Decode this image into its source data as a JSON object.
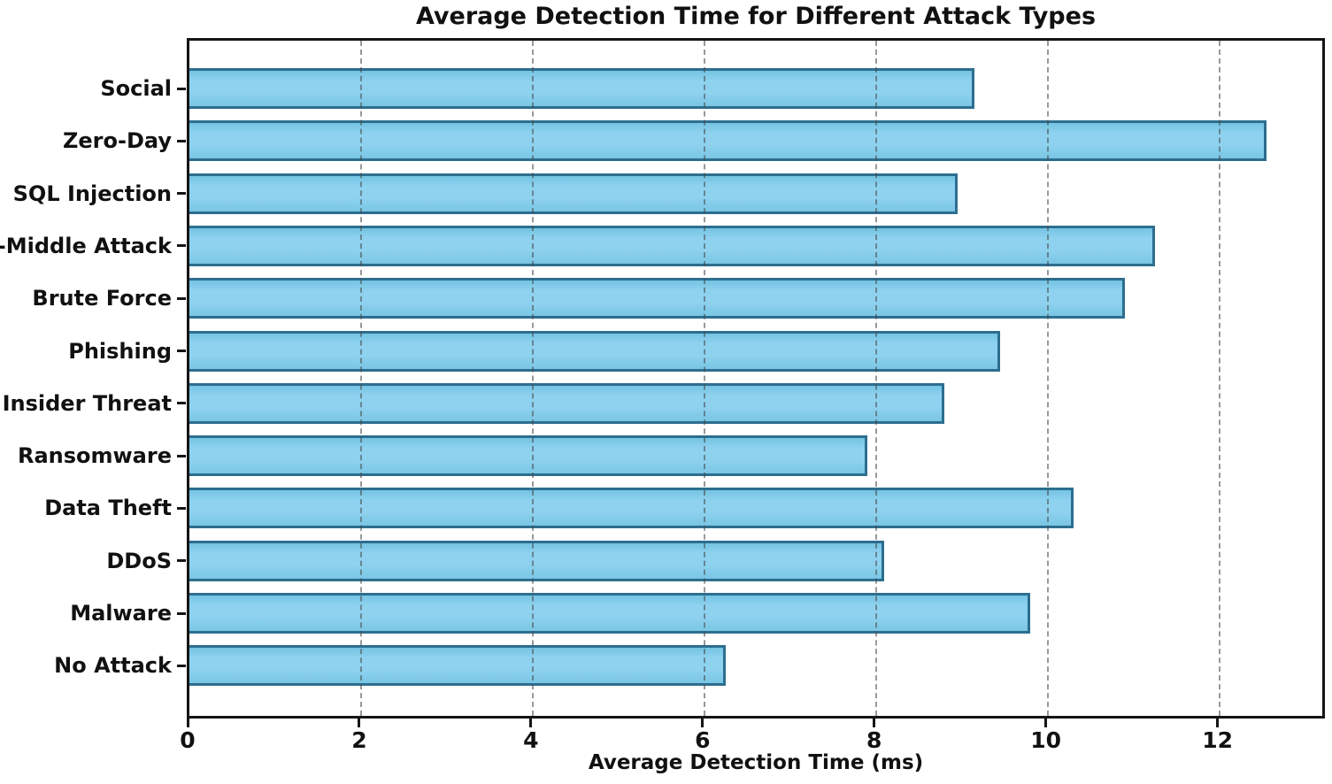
{
  "chart_data": {
    "type": "bar",
    "orientation": "horizontal",
    "title": "Average Detection Time for Different Attack Types",
    "xlabel": "Average Detection Time (ms)",
    "ylabel": "",
    "categories": [
      "Social",
      "Zero-Day",
      "SQL Injection",
      "-In-Middle Attack",
      "Brute Force",
      "Phishing",
      "Insider Threat",
      "Ransomware",
      "Data Theft",
      "DDoS",
      "Malware",
      "No Attack"
    ],
    "values": [
      9.15,
      12.55,
      8.95,
      11.25,
      10.9,
      9.45,
      8.8,
      7.9,
      10.3,
      8.1,
      9.8,
      6.25
    ],
    "xticks": [
      0,
      2,
      4,
      6,
      8,
      10,
      12
    ],
    "xlim": [
      0,
      13.2
    ],
    "grid": {
      "axis": "x",
      "style": "dashed",
      "drawn_above_bars": true
    },
    "legend": "none",
    "colors": {
      "bar_fill": "#87ceeb",
      "bar_edge": "#2d6e8f",
      "gridline": "#555555",
      "spine": "#151515",
      "text": "#111111",
      "background": "#ffffff"
    }
  }
}
